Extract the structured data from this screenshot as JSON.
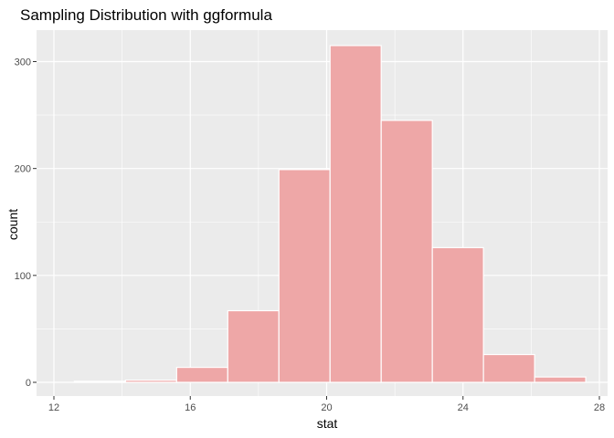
{
  "chart_data": {
    "type": "bar",
    "title": "Sampling Distribution with ggformula",
    "xlabel": "stat",
    "ylabel": "count",
    "xlim": [
      12,
      28
    ],
    "ylim": [
      0,
      330
    ],
    "x_ticks": [
      12,
      16,
      20,
      24,
      28
    ],
    "y_ticks": [
      0,
      100,
      200,
      300
    ],
    "grid": true,
    "bins": [
      {
        "start": 12.6,
        "end": 14.1,
        "count": 1
      },
      {
        "start": 14.1,
        "end": 15.6,
        "count": 2
      },
      {
        "start": 15.6,
        "end": 17.1,
        "count": 14
      },
      {
        "start": 17.1,
        "end": 18.6,
        "count": 67
      },
      {
        "start": 18.6,
        "end": 20.1,
        "count": 199
      },
      {
        "start": 20.1,
        "end": 21.6,
        "count": 315
      },
      {
        "start": 21.6,
        "end": 23.1,
        "count": 245
      },
      {
        "start": 23.1,
        "end": 24.6,
        "count": 126
      },
      {
        "start": 24.6,
        "end": 26.1,
        "count": 26
      },
      {
        "start": 26.1,
        "end": 27.6,
        "count": 5
      }
    ],
    "colors": {
      "panel": "#EBEBEB",
      "grid": "#FFFFFF",
      "bar_fill": "#EEA7A7",
      "bar_stroke": "#FFFFFF"
    }
  }
}
